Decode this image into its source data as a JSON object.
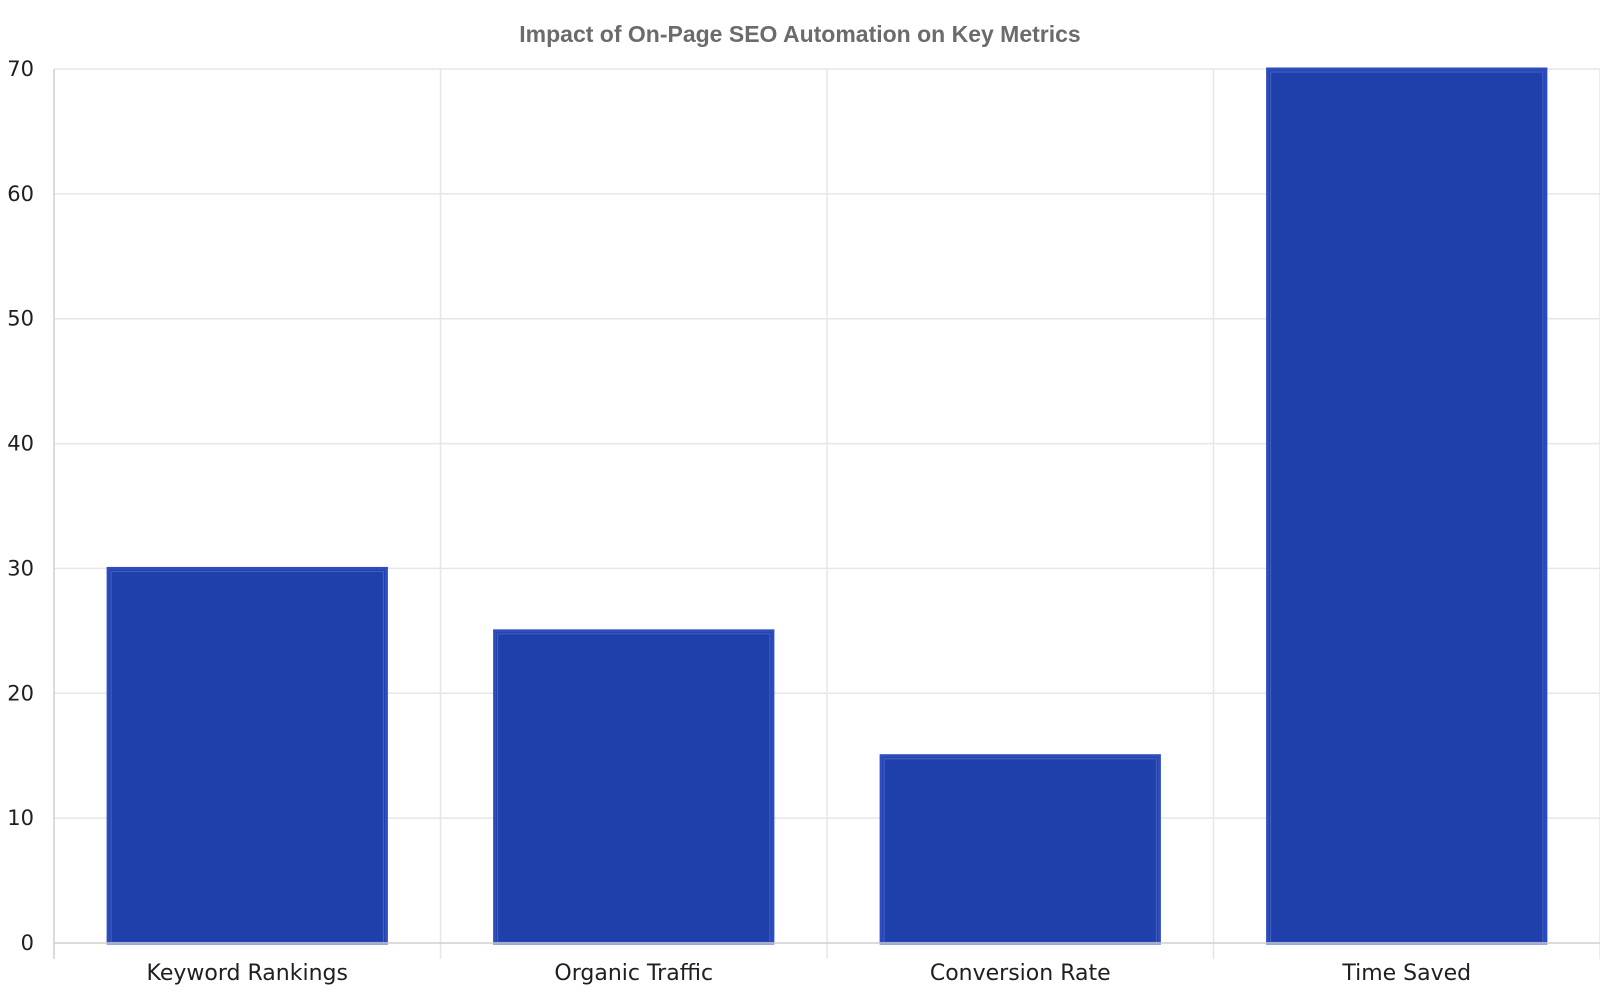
{
  "chart_data": {
    "type": "bar",
    "title": "Impact of On-Page SEO Automation on Key Metrics",
    "xlabel": "",
    "ylabel": "",
    "categories": [
      "Keyword Rankings",
      "Organic Traffic",
      "Conversion Rate",
      "Time Saved"
    ],
    "values": [
      30,
      25,
      15,
      70
    ],
    "ylim": [
      0,
      70
    ],
    "yticks": [
      0,
      10,
      20,
      30,
      40,
      50,
      60,
      70
    ],
    "grid": true,
    "colors": {
      "bar_fill": "#1f40ab",
      "bar_edge": "#2d4cc0"
    }
  }
}
